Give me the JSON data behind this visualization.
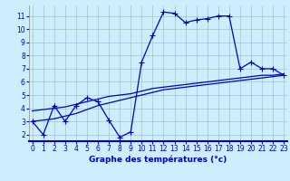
{
  "xlabel": "Graphe des températures (°c)",
  "background_color": "#cceeff",
  "grid_color": "#aacccc",
  "line_color": "#0000cc",
  "x_ticks": [
    0,
    1,
    2,
    3,
    4,
    5,
    6,
    7,
    8,
    9,
    10,
    11,
    12,
    13,
    14,
    15,
    16,
    17,
    18,
    19,
    20,
    21,
    22,
    23
  ],
  "y_ticks": [
    2,
    3,
    4,
    5,
    6,
    7,
    8,
    9,
    10,
    11
  ],
  "ylim": [
    1.5,
    11.8
  ],
  "xlim": [
    -0.3,
    23.3
  ],
  "series1_marker": {
    "x": [
      0,
      1,
      2,
      3,
      4,
      5,
      6,
      7,
      8,
      9,
      10,
      11,
      12,
      13,
      14,
      15,
      16,
      17,
      18,
      19,
      20,
      21,
      22,
      23
    ],
    "y": [
      3.0,
      2.0,
      4.2,
      3.0,
      4.2,
      4.8,
      4.5,
      3.1,
      1.8,
      2.2,
      7.5,
      9.5,
      11.3,
      11.2,
      10.5,
      10.7,
      10.8,
      11.0,
      11.0,
      7.0,
      7.5,
      7.0,
      7.0,
      6.5
    ]
  },
  "series2_line": {
    "x": [
      0,
      1,
      2,
      3,
      4,
      5,
      6,
      7,
      8,
      9,
      10,
      11,
      12,
      13,
      14,
      15,
      16,
      17,
      18,
      19,
      20,
      21,
      22,
      23
    ],
    "y": [
      3.8,
      3.9,
      4.0,
      4.1,
      4.3,
      4.5,
      4.7,
      4.9,
      5.0,
      5.1,
      5.3,
      5.5,
      5.6,
      5.7,
      5.8,
      5.9,
      6.0,
      6.1,
      6.2,
      6.3,
      6.4,
      6.5,
      6.5,
      6.6
    ]
  },
  "series3_line": {
    "x": [
      0,
      1,
      2,
      3,
      4,
      5,
      6,
      7,
      8,
      9,
      10,
      11,
      12,
      13,
      14,
      15,
      16,
      17,
      18,
      19,
      20,
      21,
      22,
      23
    ],
    "y": [
      3.0,
      3.1,
      3.2,
      3.4,
      3.6,
      3.9,
      4.2,
      4.4,
      4.6,
      4.8,
      5.0,
      5.2,
      5.4,
      5.5,
      5.6,
      5.7,
      5.8,
      5.9,
      6.0,
      6.1,
      6.2,
      6.3,
      6.4,
      6.5
    ]
  }
}
